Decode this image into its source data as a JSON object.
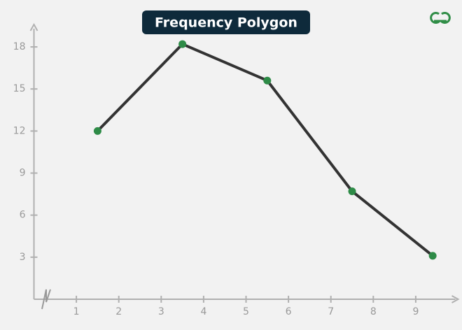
{
  "chart_data": {
    "type": "line",
    "title": "Frequency Polygon",
    "x": [
      1.5,
      3.5,
      5.5,
      7.5,
      9.4
    ],
    "series": [
      {
        "color": "#333333",
        "marker_color": "#2e8b47",
        "values": [
          12,
          18.2,
          15.6,
          7.7,
          3.1
        ]
      }
    ],
    "xlim": [
      0,
      10
    ],
    "xticks": [
      1,
      2,
      3,
      4,
      5,
      6,
      7,
      8,
      9
    ],
    "ylim": [
      0,
      19.6
    ],
    "yticks": [
      3,
      6,
      9,
      12,
      15,
      18
    ]
  }
}
